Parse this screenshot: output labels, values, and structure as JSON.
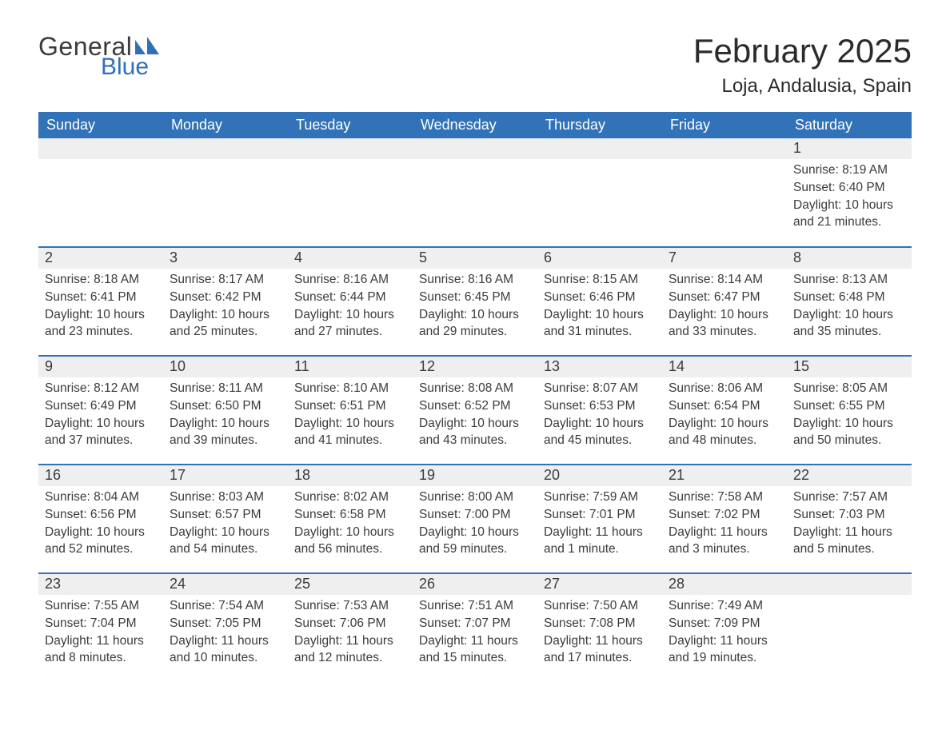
{
  "logo": {
    "text1": "General",
    "text2": "Blue",
    "flag_color": "#2f70b7"
  },
  "title": "February 2025",
  "location": "Loja, Andalusia, Spain",
  "colors": {
    "header_bg": "#3272b8",
    "header_fg": "#ffffff",
    "row_divider": "#3272b8",
    "daynum_bg": "#efefef",
    "text": "#3b3b3b",
    "background": "#ffffff"
  },
  "fonts": {
    "title_size_pt": 32,
    "location_size_pt": 18,
    "dow_size_pt": 14,
    "daynum_size_pt": 14,
    "body_size_pt": 12
  },
  "days_of_week": [
    "Sunday",
    "Monday",
    "Tuesday",
    "Wednesday",
    "Thursday",
    "Friday",
    "Saturday"
  ],
  "weeks": [
    [
      {
        "n": "",
        "sunrise": "",
        "sunset": "",
        "daylight": ""
      },
      {
        "n": "",
        "sunrise": "",
        "sunset": "",
        "daylight": ""
      },
      {
        "n": "",
        "sunrise": "",
        "sunset": "",
        "daylight": ""
      },
      {
        "n": "",
        "sunrise": "",
        "sunset": "",
        "daylight": ""
      },
      {
        "n": "",
        "sunrise": "",
        "sunset": "",
        "daylight": ""
      },
      {
        "n": "",
        "sunrise": "",
        "sunset": "",
        "daylight": ""
      },
      {
        "n": "1",
        "sunrise": "Sunrise: 8:19 AM",
        "sunset": "Sunset: 6:40 PM",
        "daylight": "Daylight: 10 hours and 21 minutes."
      }
    ],
    [
      {
        "n": "2",
        "sunrise": "Sunrise: 8:18 AM",
        "sunset": "Sunset: 6:41 PM",
        "daylight": "Daylight: 10 hours and 23 minutes."
      },
      {
        "n": "3",
        "sunrise": "Sunrise: 8:17 AM",
        "sunset": "Sunset: 6:42 PM",
        "daylight": "Daylight: 10 hours and 25 minutes."
      },
      {
        "n": "4",
        "sunrise": "Sunrise: 8:16 AM",
        "sunset": "Sunset: 6:44 PM",
        "daylight": "Daylight: 10 hours and 27 minutes."
      },
      {
        "n": "5",
        "sunrise": "Sunrise: 8:16 AM",
        "sunset": "Sunset: 6:45 PM",
        "daylight": "Daylight: 10 hours and 29 minutes."
      },
      {
        "n": "6",
        "sunrise": "Sunrise: 8:15 AM",
        "sunset": "Sunset: 6:46 PM",
        "daylight": "Daylight: 10 hours and 31 minutes."
      },
      {
        "n": "7",
        "sunrise": "Sunrise: 8:14 AM",
        "sunset": "Sunset: 6:47 PM",
        "daylight": "Daylight: 10 hours and 33 minutes."
      },
      {
        "n": "8",
        "sunrise": "Sunrise: 8:13 AM",
        "sunset": "Sunset: 6:48 PM",
        "daylight": "Daylight: 10 hours and 35 minutes."
      }
    ],
    [
      {
        "n": "9",
        "sunrise": "Sunrise: 8:12 AM",
        "sunset": "Sunset: 6:49 PM",
        "daylight": "Daylight: 10 hours and 37 minutes."
      },
      {
        "n": "10",
        "sunrise": "Sunrise: 8:11 AM",
        "sunset": "Sunset: 6:50 PM",
        "daylight": "Daylight: 10 hours and 39 minutes."
      },
      {
        "n": "11",
        "sunrise": "Sunrise: 8:10 AM",
        "sunset": "Sunset: 6:51 PM",
        "daylight": "Daylight: 10 hours and 41 minutes."
      },
      {
        "n": "12",
        "sunrise": "Sunrise: 8:08 AM",
        "sunset": "Sunset: 6:52 PM",
        "daylight": "Daylight: 10 hours and 43 minutes."
      },
      {
        "n": "13",
        "sunrise": "Sunrise: 8:07 AM",
        "sunset": "Sunset: 6:53 PM",
        "daylight": "Daylight: 10 hours and 45 minutes."
      },
      {
        "n": "14",
        "sunrise": "Sunrise: 8:06 AM",
        "sunset": "Sunset: 6:54 PM",
        "daylight": "Daylight: 10 hours and 48 minutes."
      },
      {
        "n": "15",
        "sunrise": "Sunrise: 8:05 AM",
        "sunset": "Sunset: 6:55 PM",
        "daylight": "Daylight: 10 hours and 50 minutes."
      }
    ],
    [
      {
        "n": "16",
        "sunrise": "Sunrise: 8:04 AM",
        "sunset": "Sunset: 6:56 PM",
        "daylight": "Daylight: 10 hours and 52 minutes."
      },
      {
        "n": "17",
        "sunrise": "Sunrise: 8:03 AM",
        "sunset": "Sunset: 6:57 PM",
        "daylight": "Daylight: 10 hours and 54 minutes."
      },
      {
        "n": "18",
        "sunrise": "Sunrise: 8:02 AM",
        "sunset": "Sunset: 6:58 PM",
        "daylight": "Daylight: 10 hours and 56 minutes."
      },
      {
        "n": "19",
        "sunrise": "Sunrise: 8:00 AM",
        "sunset": "Sunset: 7:00 PM",
        "daylight": "Daylight: 10 hours and 59 minutes."
      },
      {
        "n": "20",
        "sunrise": "Sunrise: 7:59 AM",
        "sunset": "Sunset: 7:01 PM",
        "daylight": "Daylight: 11 hours and 1 minute."
      },
      {
        "n": "21",
        "sunrise": "Sunrise: 7:58 AM",
        "sunset": "Sunset: 7:02 PM",
        "daylight": "Daylight: 11 hours and 3 minutes."
      },
      {
        "n": "22",
        "sunrise": "Sunrise: 7:57 AM",
        "sunset": "Sunset: 7:03 PM",
        "daylight": "Daylight: 11 hours and 5 minutes."
      }
    ],
    [
      {
        "n": "23",
        "sunrise": "Sunrise: 7:55 AM",
        "sunset": "Sunset: 7:04 PM",
        "daylight": "Daylight: 11 hours and 8 minutes."
      },
      {
        "n": "24",
        "sunrise": "Sunrise: 7:54 AM",
        "sunset": "Sunset: 7:05 PM",
        "daylight": "Daylight: 11 hours and 10 minutes."
      },
      {
        "n": "25",
        "sunrise": "Sunrise: 7:53 AM",
        "sunset": "Sunset: 7:06 PM",
        "daylight": "Daylight: 11 hours and 12 minutes."
      },
      {
        "n": "26",
        "sunrise": "Sunrise: 7:51 AM",
        "sunset": "Sunset: 7:07 PM",
        "daylight": "Daylight: 11 hours and 15 minutes."
      },
      {
        "n": "27",
        "sunrise": "Sunrise: 7:50 AM",
        "sunset": "Sunset: 7:08 PM",
        "daylight": "Daylight: 11 hours and 17 minutes."
      },
      {
        "n": "28",
        "sunrise": "Sunrise: 7:49 AM",
        "sunset": "Sunset: 7:09 PM",
        "daylight": "Daylight: 11 hours and 19 minutes."
      },
      {
        "n": "",
        "sunrise": "",
        "sunset": "",
        "daylight": ""
      }
    ]
  ]
}
